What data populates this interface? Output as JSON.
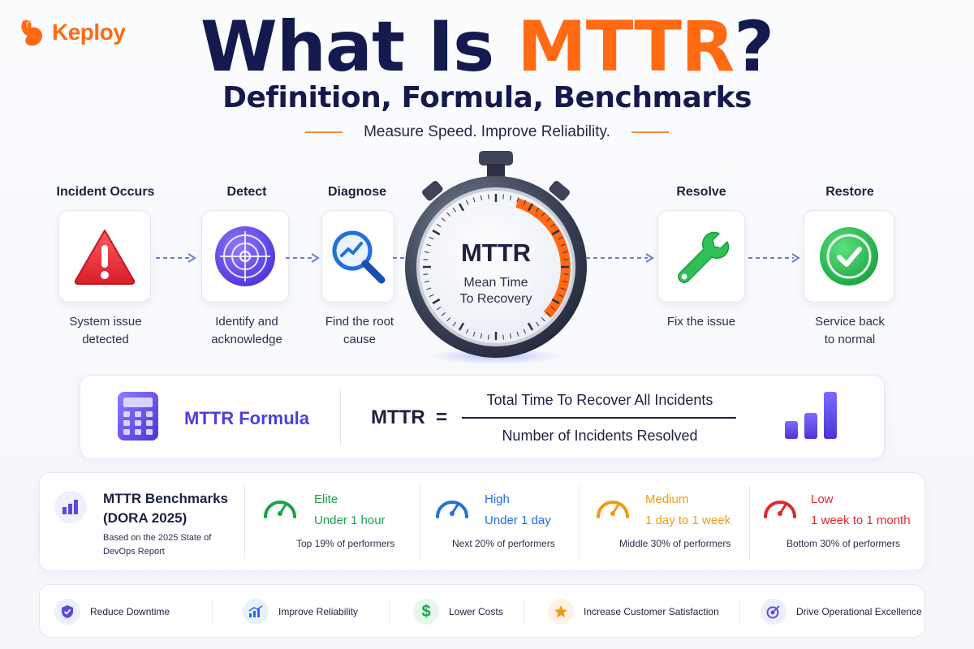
{
  "brand": {
    "name": "Keploy"
  },
  "header": {
    "title_prefix": "What Is ",
    "title_accent": "MTTR",
    "title_suffix": "?",
    "subtitle": "Definition, Formula, Benchmarks",
    "tagline": "Measure Speed. Improve Reliability."
  },
  "steps": [
    {
      "label": "Incident Occurs",
      "desc": [
        "System issue",
        "detected"
      ],
      "icon": "warning-icon"
    },
    {
      "label": "Detect",
      "desc": [
        "Identify and",
        "acknowledge"
      ],
      "icon": "target-icon"
    },
    {
      "label": "Diagnose",
      "desc": [
        "Find the root",
        "cause"
      ],
      "icon": "magnifier-chart-icon"
    },
    {
      "label": "Resolve",
      "desc": [
        "Fix the issue"
      ],
      "icon": "wrench-icon"
    },
    {
      "label": "Restore",
      "desc": [
        "Service back",
        "to normal"
      ],
      "icon": "check-circle-icon"
    }
  ],
  "stopwatch": {
    "title": "MTTR",
    "sub_line1": "Mean Time",
    "sub_line2": "To Recovery",
    "icon": "stopwatch-icon"
  },
  "formula": {
    "title": "MTTR Formula",
    "lhs": "MTTR  =",
    "numerator": "Total Time To Recover All Incidents",
    "denominator": "Number of Incidents Resolved"
  },
  "benchmarks": {
    "title_line1": "MTTR Benchmarks",
    "title_line2": "(DORA 2025)",
    "note_line1": "Based on the 2025 State of",
    "note_line2": "DevOps Report",
    "tiers": [
      {
        "name": "Elite",
        "range": "Under 1 hour",
        "perf": "Top 19% of performers",
        "color": "#1aa34a"
      },
      {
        "name": "High",
        "range": "Under 1 day",
        "perf": "Next 20% of performers",
        "color": "#1f6fe0"
      },
      {
        "name": "Medium",
        "range": "1 day to 1 week",
        "perf": "Middle 30% of performers",
        "color": "#f39a12"
      },
      {
        "name": "Low",
        "range": "1 week to 1 month",
        "perf": "Bottom 30% of performers",
        "color": "#e2262e"
      }
    ]
  },
  "benefits": [
    {
      "label": "Reduce Downtime",
      "icon": "shield-icon"
    },
    {
      "label": "Improve Reliability",
      "icon": "growth-chart-icon"
    },
    {
      "label": "Lower Costs",
      "icon": "dollar-icon"
    },
    {
      "label": "Increase Customer Satisfaction",
      "icon": "star-icon"
    },
    {
      "label": "Drive Operational Excellence",
      "icon": "target-arrow-icon"
    }
  ],
  "colors": {
    "accent": "#ff6a13",
    "navy": "#141a4d",
    "purple": "#4b3ee0"
  }
}
